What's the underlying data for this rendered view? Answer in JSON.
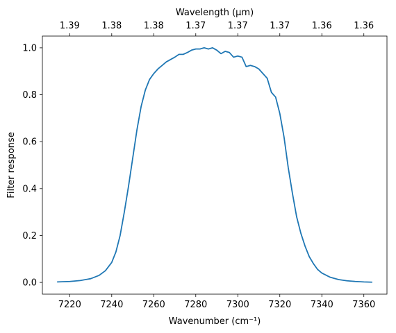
{
  "chart_data": {
    "type": "line",
    "xlabel": "Wavenumber (cm⁻¹)",
    "ylabel": "Filter response",
    "top_xlabel": "Wavelength (μm)",
    "xlim": [
      7207,
      7371
    ],
    "ylim": [
      -0.05,
      1.05
    ],
    "grid": false,
    "x_ticks": [
      7220,
      7240,
      7260,
      7280,
      7300,
      7320,
      7340,
      7360
    ],
    "x_tick_labels": [
      "7220",
      "7240",
      "7260",
      "7280",
      "7300",
      "7320",
      "7340",
      "7360"
    ],
    "y_ticks": [
      0.0,
      0.2,
      0.4,
      0.6,
      0.8,
      1.0
    ],
    "y_tick_labels": [
      "0.0",
      "0.2",
      "0.4",
      "0.6",
      "0.8",
      "1.0"
    ],
    "top_ticks": [
      7220,
      7240,
      7260,
      7280,
      7300,
      7320,
      7340,
      7360
    ],
    "top_tick_labels": [
      "1.39",
      "1.38",
      "1.38",
      "1.37",
      "1.37",
      "1.37",
      "1.36",
      "1.36"
    ],
    "series": [
      {
        "color": "#1f77b4",
        "x": [
          7214,
          7220,
          7225,
          7230,
          7234,
          7237,
          7240,
          7242,
          7244,
          7246,
          7248,
          7250,
          7252,
          7254,
          7256,
          7258,
          7260,
          7262,
          7264,
          7266,
          7268,
          7270,
          7272,
          7274,
          7276,
          7278,
          7280,
          7282,
          7284,
          7286,
          7288,
          7290,
          7292,
          7294,
          7296,
          7298,
          7300,
          7302,
          7304,
          7306,
          7308,
          7310,
          7312,
          7314,
          7316,
          7318,
          7320,
          7322,
          7324,
          7326,
          7328,
          7330,
          7332,
          7334,
          7336,
          7338,
          7340,
          7344,
          7348,
          7352,
          7356,
          7360,
          7364
        ],
        "y": [
          0.002,
          0.004,
          0.008,
          0.016,
          0.03,
          0.05,
          0.085,
          0.13,
          0.2,
          0.3,
          0.41,
          0.53,
          0.65,
          0.75,
          0.82,
          0.865,
          0.89,
          0.91,
          0.925,
          0.94,
          0.95,
          0.96,
          0.972,
          0.972,
          0.98,
          0.99,
          0.995,
          0.995,
          1.0,
          0.995,
          1.0,
          0.99,
          0.975,
          0.985,
          0.98,
          0.96,
          0.965,
          0.96,
          0.92,
          0.925,
          0.92,
          0.91,
          0.89,
          0.87,
          0.81,
          0.79,
          0.72,
          0.62,
          0.49,
          0.38,
          0.28,
          0.21,
          0.155,
          0.11,
          0.08,
          0.055,
          0.04,
          0.022,
          0.012,
          0.007,
          0.004,
          0.002,
          0.001
        ]
      }
    ]
  }
}
